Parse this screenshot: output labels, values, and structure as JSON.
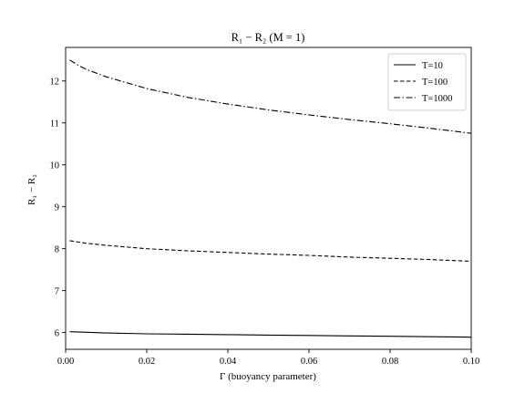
{
  "chart_data": {
    "type": "line",
    "title": "R₁ − R₂   (M = 1)",
    "xlabel": "Γ (buoyancy parameter)",
    "ylabel": "R₁ − R₂",
    "xlim": [
      0.0,
      0.1
    ],
    "ylim": [
      5.6,
      12.8
    ],
    "xticks": [
      0.0,
      0.02,
      0.04,
      0.06,
      0.08,
      0.1
    ],
    "xtick_labels": [
      "0.00",
      "0.02",
      "0.04",
      "0.06",
      "0.08",
      "0.10"
    ],
    "yticks": [
      6,
      7,
      8,
      9,
      10,
      11,
      12
    ],
    "ytick_labels": [
      "6",
      "7",
      "8",
      "9",
      "10",
      "11",
      "12"
    ],
    "grid": false,
    "legend_position": "top-right",
    "series": [
      {
        "name": "T=10",
        "style": "solid",
        "x": [
          0.001,
          0.01,
          0.02,
          0.03,
          0.04,
          0.05,
          0.06,
          0.07,
          0.08,
          0.09,
          0.1
        ],
        "y": [
          6.02,
          5.99,
          5.97,
          5.96,
          5.95,
          5.94,
          5.93,
          5.92,
          5.91,
          5.9,
          5.89
        ]
      },
      {
        "name": "T=100",
        "style": "dashed",
        "x": [
          0.001,
          0.005,
          0.01,
          0.02,
          0.03,
          0.04,
          0.05,
          0.06,
          0.07,
          0.08,
          0.09,
          0.1
        ],
        "y": [
          8.19,
          8.13,
          8.08,
          8.0,
          7.95,
          7.91,
          7.87,
          7.84,
          7.8,
          7.77,
          7.74,
          7.7
        ]
      },
      {
        "name": "T=1000",
        "style": "dashdot",
        "x": [
          0.001,
          0.003,
          0.005,
          0.01,
          0.02,
          0.03,
          0.04,
          0.05,
          0.06,
          0.07,
          0.08,
          0.09,
          0.1
        ],
        "y": [
          12.5,
          12.38,
          12.28,
          12.1,
          11.82,
          11.61,
          11.45,
          11.31,
          11.19,
          11.08,
          10.98,
          10.87,
          10.75
        ]
      }
    ]
  }
}
